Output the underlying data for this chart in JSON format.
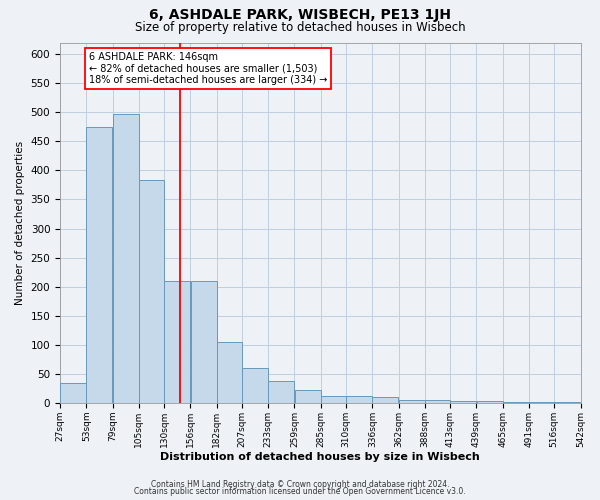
{
  "title": "6, ASHDALE PARK, WISBECH, PE13 1JH",
  "subtitle": "Size of property relative to detached houses in Wisbech",
  "xlabel": "Distribution of detached houses by size in Wisbech",
  "ylabel": "Number of detached properties",
  "bar_left_edges": [
    27,
    53,
    79,
    105,
    130,
    156,
    182,
    207,
    233,
    259,
    285,
    310,
    336,
    362,
    388,
    413,
    439,
    465,
    491,
    516
  ],
  "bar_widths": [
    26,
    26,
    26,
    25,
    26,
    26,
    25,
    26,
    26,
    26,
    25,
    26,
    26,
    26,
    25,
    26,
    26,
    26,
    25,
    26
  ],
  "bar_heights": [
    35,
    475,
    497,
    383,
    210,
    210,
    105,
    60,
    38,
    22,
    12,
    12,
    10,
    5,
    5,
    3,
    3,
    2,
    1,
    2
  ],
  "bar_color": "#c5d9eb",
  "bar_edge_color": "#6699bb",
  "tick_labels": [
    "27sqm",
    "53sqm",
    "79sqm",
    "105sqm",
    "130sqm",
    "156sqm",
    "182sqm",
    "207sqm",
    "233sqm",
    "259sqm",
    "285sqm",
    "310sqm",
    "336sqm",
    "362sqm",
    "388sqm",
    "413sqm",
    "439sqm",
    "465sqm",
    "491sqm",
    "516sqm",
    "542sqm"
  ],
  "red_line_x": 146,
  "annotation_title": "6 ASHDALE PARK: 146sqm",
  "annotation_line1": "← 82% of detached houses are smaller (1,503)",
  "annotation_line2": "18% of semi-detached houses are larger (334) →",
  "ylim": [
    0,
    620
  ],
  "xlim": [
    27,
    542
  ],
  "footer_line1": "Contains HM Land Registry data © Crown copyright and database right 2024.",
  "footer_line2": "Contains public sector information licensed under the Open Government Licence v3.0.",
  "background_color": "#eef2f7",
  "plot_bg_color": "#eef2f7",
  "grid_color": "#c0cfe0"
}
